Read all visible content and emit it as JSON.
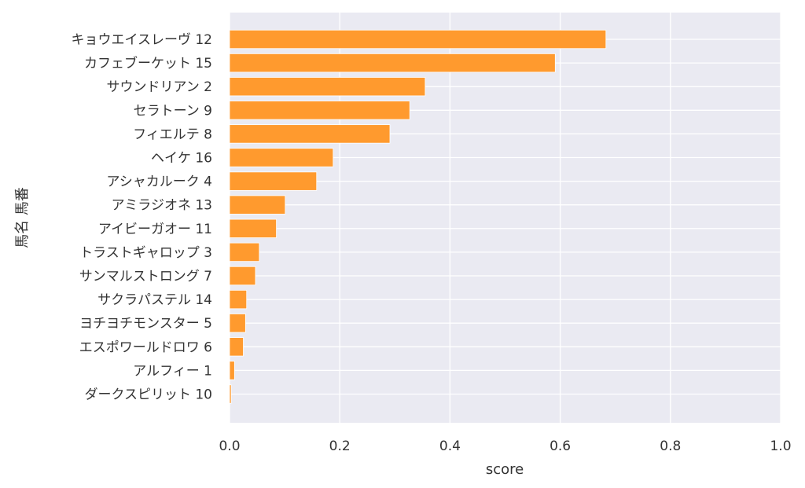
{
  "chart_data": {
    "type": "bar",
    "orientation": "horizontal",
    "categories": [
      "キョウエイスレーヴ 12",
      "カフェブーケット 15",
      "サウンドリアン 2",
      "セラトーン 9",
      "フィエルテ 8",
      "ヘイケ 16",
      "アシャカルーク 4",
      "アミラジオネ 13",
      "アイビーガオー 11",
      "トラストギャロップ 3",
      "サンマルストロング 7",
      "サクラパステル 14",
      "ヨチヨチモンスター 5",
      "エスポワールドロワ 6",
      "アルフィー 1",
      "ダークスピリット 10"
    ],
    "values": [
      0.683,
      0.591,
      0.355,
      0.327,
      0.291,
      0.188,
      0.158,
      0.101,
      0.085,
      0.054,
      0.047,
      0.031,
      0.029,
      0.025,
      0.009,
      0.003
    ],
    "xlabel": "score",
    "ylabel": "馬名 馬番",
    "xlim": [
      0,
      1
    ],
    "xticks": [
      "0.0",
      "0.2",
      "0.4",
      "0.6",
      "0.8",
      "1.0"
    ],
    "grid": true,
    "bar_color": "#ff9a2e",
    "background_color": "#eaeaf2"
  }
}
